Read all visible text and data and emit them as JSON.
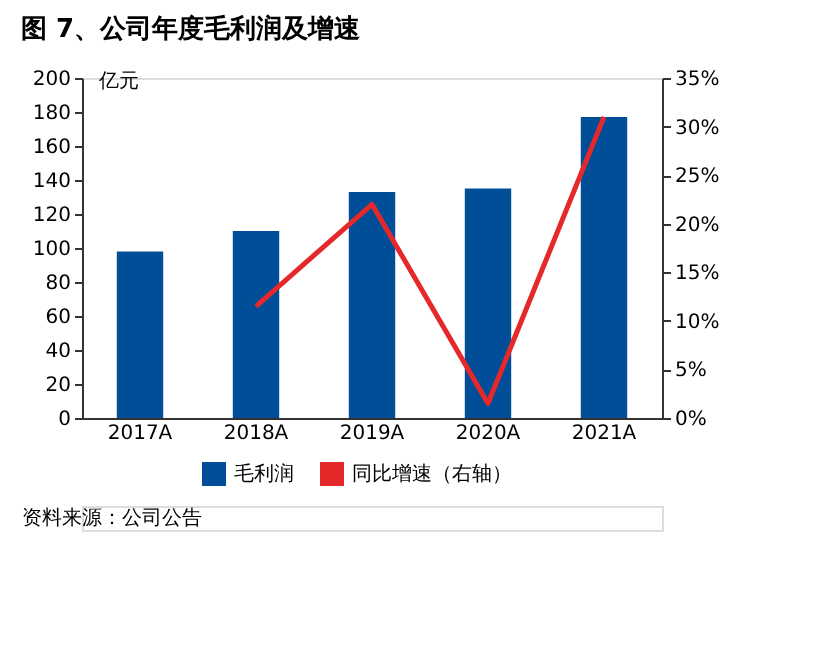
{
  "chart_data": {
    "type": "bar",
    "title": "图 7、公司年度毛利润及增速",
    "ylabel": "亿元",
    "categories": [
      "2017A",
      "2018A",
      "2019A",
      "2020A",
      "2021A"
    ],
    "series": [
      {
        "name": "毛利润",
        "color": "#004e97",
        "values": [
          98,
          110,
          133,
          135,
          177
        ]
      },
      {
        "name": "同比增速（右轴）",
        "type": "line",
        "axis": "y2",
        "color": "#e5282a",
        "values": [
          null,
          11.5,
          22,
          1.5,
          31
        ]
      }
    ],
    "ylim": [
      0,
      200
    ],
    "yticks": [
      0,
      20,
      40,
      60,
      80,
      100,
      120,
      140,
      160,
      180,
      200
    ],
    "y2lim": [
      0,
      35
    ],
    "y2ticks": [
      {
        "value": 0,
        "label": "0%"
      },
      {
        "value": 5,
        "label": "5%"
      },
      {
        "value": 10,
        "label": "10%"
      },
      {
        "value": 15,
        "label": "15%"
      },
      {
        "value": 20,
        "label": "20%"
      },
      {
        "value": 25,
        "label": "25%"
      },
      {
        "value": 30,
        "label": "30%"
      },
      {
        "value": 35,
        "label": "35%"
      }
    ],
    "grid": false,
    "legend": "bottom",
    "marker": "none",
    "line_style": "solid",
    "annotations": [
      "资料来源：公司公告"
    ]
  }
}
